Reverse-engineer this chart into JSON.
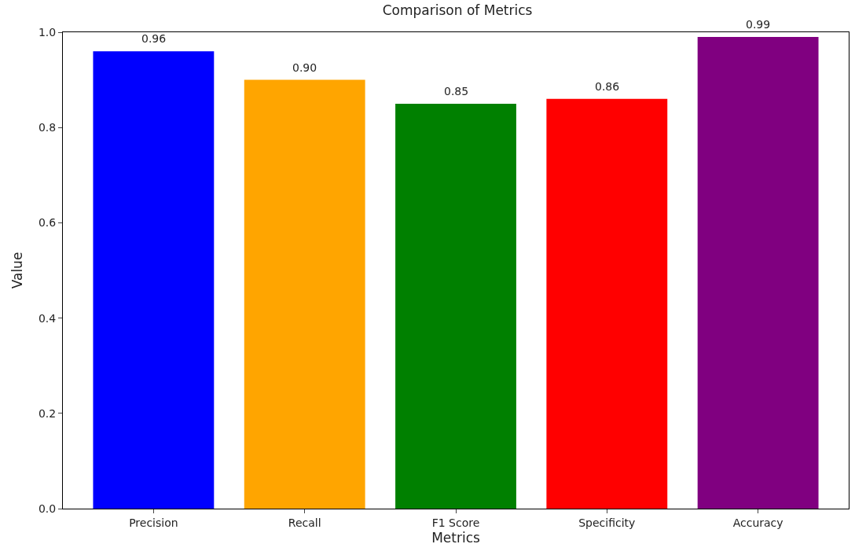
{
  "chart_data": {
    "type": "bar",
    "title": "Comparison of Metrics",
    "xlabel": "Metrics",
    "ylabel": "Value",
    "categories": [
      "Precision",
      "Recall",
      "F1 Score",
      "Specificity",
      "Accuracy"
    ],
    "values": [
      0.96,
      0.9,
      0.85,
      0.86,
      0.99
    ],
    "colors": [
      "#0000ff",
      "#ffa500",
      "#008000",
      "#ff0000",
      "#800080"
    ],
    "value_labels": [
      "0.96",
      "0.90",
      "0.85",
      "0.86",
      "0.99"
    ],
    "ylim": [
      0,
      1
    ],
    "yticks": [
      {
        "value": 0,
        "label": "0.0"
      },
      {
        "value": 0.2,
        "label": "0.2"
      },
      {
        "value": 0.4,
        "label": "0.4"
      },
      {
        "value": 0.6,
        "label": "0.6"
      },
      {
        "value": 0.8,
        "label": "0.8"
      },
      {
        "value": 1,
        "label": "1.0"
      }
    ],
    "legend": false
  }
}
